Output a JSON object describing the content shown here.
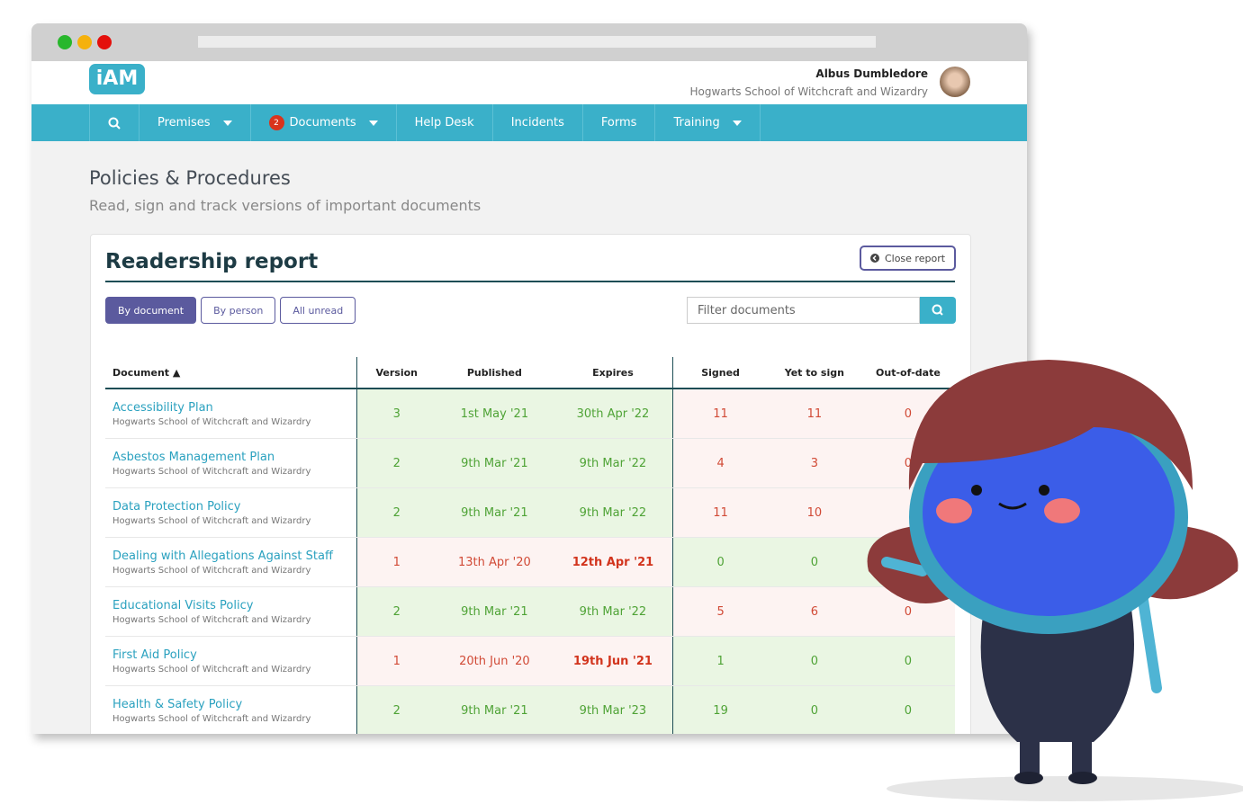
{
  "header": {
    "logo": "iAM",
    "user_name": "Albus Dumbledore",
    "school": "Hogwarts School of Witchcraft and Wizardry"
  },
  "nav": {
    "items": [
      {
        "label": "Premises",
        "dropdown": true
      },
      {
        "label": "Documents",
        "dropdown": true,
        "badge": "2"
      },
      {
        "label": "Help Desk",
        "dropdown": false
      },
      {
        "label": "Incidents",
        "dropdown": false
      },
      {
        "label": "Forms",
        "dropdown": false
      },
      {
        "label": "Training",
        "dropdown": true
      }
    ]
  },
  "page": {
    "title": "Policies & Procedures",
    "subtitle": "Read, sign and track versions of important documents"
  },
  "panel": {
    "title": "Readership report",
    "close_button": "Close report",
    "tabs": [
      {
        "label": "By document",
        "active": true
      },
      {
        "label": "By person",
        "active": false
      },
      {
        "label": "All unread",
        "active": false
      }
    ],
    "filter_placeholder": "Filter documents"
  },
  "table": {
    "columns": [
      "Document ▲",
      "Version",
      "Published",
      "Expires",
      "Signed",
      "Yet to sign",
      "Out-of-date"
    ],
    "rows": [
      {
        "name": "Accessibility Plan",
        "school": "Hogwarts School of Witchcraft and Wizardry",
        "version": 3,
        "published": "1st May '21",
        "expires": "30th Apr '22",
        "signed": 11,
        "yet_to_sign": 11,
        "out_of_date": 0,
        "version_status": "current",
        "sign_status": "pending"
      },
      {
        "name": "Asbestos Management Plan",
        "school": "Hogwarts School of Witchcraft and Wizardry",
        "version": 2,
        "published": "9th Mar '21",
        "expires": "9th Mar '22",
        "signed": 4,
        "yet_to_sign": 3,
        "out_of_date": 0,
        "version_status": "current",
        "sign_status": "pending"
      },
      {
        "name": "Data Protection Policy",
        "school": "Hogwarts School of Witchcraft and Wizardry",
        "version": 2,
        "published": "9th Mar '21",
        "expires": "9th Mar '22",
        "signed": 11,
        "yet_to_sign": 10,
        "out_of_date": null,
        "version_status": "current",
        "sign_status": "pending"
      },
      {
        "name": "Dealing with Allegations Against Staff",
        "school": "Hogwarts School of Witchcraft and Wizardry",
        "version": 1,
        "published": "13th Apr '20",
        "expires": "12th Apr '21",
        "signed": 0,
        "yet_to_sign": 0,
        "out_of_date": null,
        "version_status": "expired",
        "sign_status": "complete"
      },
      {
        "name": "Educational Visits Policy",
        "school": "Hogwarts School of Witchcraft and Wizardry",
        "version": 2,
        "published": "9th Mar '21",
        "expires": "9th Mar '22",
        "signed": 5,
        "yet_to_sign": 6,
        "out_of_date": 0,
        "version_status": "current",
        "sign_status": "pending"
      },
      {
        "name": "First Aid Policy",
        "school": "Hogwarts School of Witchcraft and Wizardry",
        "version": 1,
        "published": "20th Jun '20",
        "expires": "19th Jun '21",
        "signed": 1,
        "yet_to_sign": 0,
        "out_of_date": 0,
        "version_status": "expired",
        "sign_status": "complete"
      },
      {
        "name": "Health & Safety Policy",
        "school": "Hogwarts School of Witchcraft and Wizardry",
        "version": 2,
        "published": "9th Mar '21",
        "expires": "9th Mar '23",
        "signed": 19,
        "yet_to_sign": 0,
        "out_of_date": 0,
        "version_status": "current",
        "sign_status": "complete"
      }
    ]
  }
}
